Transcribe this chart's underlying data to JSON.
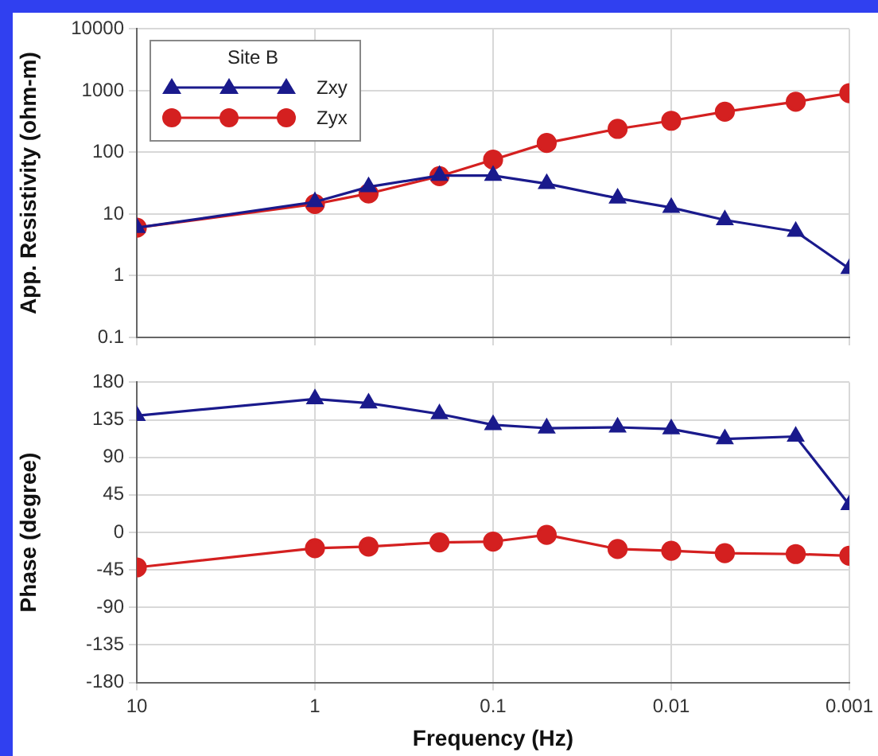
{
  "chart_data": [
    {
      "type": "line",
      "ylabel": "App. Resistivity (ohm-m)",
      "legend_title": "Site B",
      "legend": "top left",
      "log": "xy",
      "grid": true,
      "tick_labels": "y",
      "x": [
        10,
        1,
        0.5,
        0.2,
        0.1,
        0.05,
        0.02,
        0.01,
        0.005,
        0.002,
        0.001
      ],
      "xlim": [
        10,
        0.001
      ],
      "xticks": [
        10,
        1,
        0.1,
        0.01,
        0.001
      ],
      "ylim": [
        0.1,
        10000
      ],
      "yticks": [
        0.1,
        1,
        10,
        100,
        1000,
        10000
      ],
      "series": [
        {
          "name": "Zxy",
          "color": "#1a1a8c",
          "marker": "triangle",
          "values": [
            6,
            15.7,
            27.5,
            42,
            42,
            31,
            18,
            12.7,
            8,
            5.2,
            1.3
          ]
        },
        {
          "name": "Zyx",
          "color": "#d42020",
          "marker": "circle",
          "values": [
            6,
            14.5,
            21.5,
            41,
            76,
            142,
            240,
            325,
            455,
            660,
            910
          ]
        }
      ]
    },
    {
      "type": "line",
      "xlabel": "Frequency (Hz)",
      "ylabel": "Phase (degree)",
      "log": "x",
      "grid": true,
      "x": [
        10,
        1,
        0.5,
        0.2,
        0.1,
        0.05,
        0.02,
        0.01,
        0.005,
        0.002,
        0.001
      ],
      "xlim": [
        10,
        0.001
      ],
      "xticks": [
        10,
        1,
        0.1,
        0.01,
        0.001
      ],
      "ylim": [
        -180,
        180
      ],
      "yticks": [
        -180,
        -135,
        -90,
        -45,
        0,
        45,
        90,
        135,
        180
      ],
      "series": [
        {
          "color": "#1a1a8c",
          "marker": "triangle",
          "values": [
            140,
            160,
            155,
            142,
            129,
            125,
            126,
            124,
            112,
            115,
            33
          ]
        },
        {
          "color": "#d42020",
          "marker": "circle",
          "values": [
            -42,
            -19,
            -17,
            -12,
            -11,
            -3,
            -20,
            -22,
            -25,
            -26,
            -28
          ]
        }
      ]
    }
  ]
}
